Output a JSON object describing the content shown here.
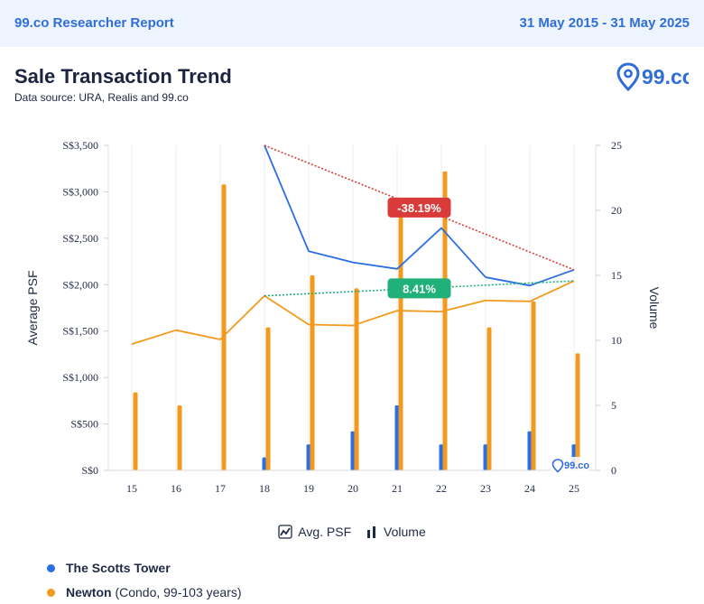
{
  "header": {
    "brand": "99.co Researcher Report",
    "date_range": "31 May 2015 - 31 May 2025"
  },
  "report": {
    "title": "Sale Transaction Trend",
    "source": "Data source: URA, Realis and 99.co",
    "logo_text": "99.co"
  },
  "chart_data": {
    "type": "bar",
    "x": [
      "15",
      "16",
      "17",
      "18",
      "19",
      "20",
      "21",
      "22",
      "23",
      "24",
      "25"
    ],
    "ylabel": "Average PSF",
    "y2label": "Volume",
    "ylim": [
      0,
      3500
    ],
    "y2lim": [
      0,
      25
    ],
    "yticks": [
      "S$0",
      "S$500",
      "S$1,000",
      "S$1,500",
      "S$2,000",
      "S$2,500",
      "S$3,000",
      "S$3,500"
    ],
    "y2ticks": [
      "0",
      "5",
      "10",
      "15",
      "20",
      "25"
    ],
    "series": [
      {
        "name": "The Scotts Tower",
        "color": "#2c6fe0",
        "psf": [
          null,
          null,
          null,
          3500,
          2360,
          2240,
          2170,
          2610,
          2080,
          1990,
          2160
        ],
        "volume": [
          0,
          0,
          0,
          1,
          2,
          3,
          5,
          2,
          2,
          3,
          2
        ]
      },
      {
        "name": "Newton",
        "color": "#f29a1d",
        "psf": [
          1360,
          1510,
          1410,
          1880,
          1570,
          1560,
          1720,
          1710,
          1830,
          1820,
          2040
        ],
        "volume": [
          6,
          5,
          22,
          11,
          15,
          14,
          20,
          23,
          11,
          13,
          9
        ]
      }
    ],
    "trends": [
      {
        "series": "The Scotts Tower",
        "from": "18",
        "to": "25",
        "label": "-38.19%",
        "color": "#d93b3b"
      },
      {
        "series": "Newton",
        "from": "18",
        "to": "25",
        "label": "8.41%",
        "color": "#20b07a"
      }
    ],
    "watermark": "99.co",
    "legend": {
      "psf_label": "Avg. PSF",
      "volume_label": "Volume"
    }
  },
  "properties": [
    {
      "name": "The Scotts Tower",
      "detail": "",
      "color": "#2c6fe0"
    },
    {
      "name": "Newton",
      "detail": "(Condo, 99-103 years)",
      "color": "#f29a1d"
    }
  ]
}
